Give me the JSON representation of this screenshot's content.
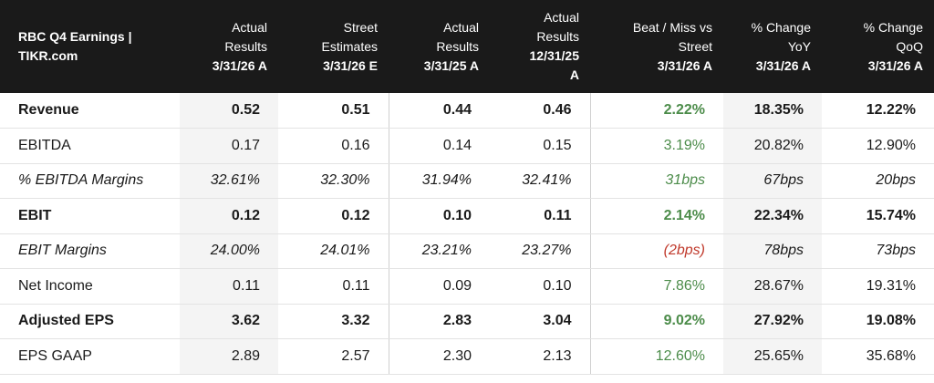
{
  "header": {
    "title_line1": "RBC Q4 Earnings |",
    "title_line2": "TIKR.com",
    "columns": [
      {
        "line1": "Actual",
        "line2": "Results",
        "line3": "3/31/26 A"
      },
      {
        "line1": "Street",
        "line2": "Estimates",
        "line3": "3/31/26 E"
      },
      {
        "line1": "Actual",
        "line2": "Results",
        "line3": "3/31/25 A"
      },
      {
        "line1": "Actual",
        "line2": "Results",
        "line3": "12/31/25",
        "line4": "A"
      },
      {
        "line1": "Beat / Miss vs",
        "line2": "Street",
        "line3": "3/31/26 A"
      },
      {
        "line1": "% Change",
        "line2": "YoY",
        "line3": "3/31/26 A"
      },
      {
        "line1": "% Change",
        "line2": "QoQ",
        "line3": "3/31/26 A"
      }
    ]
  },
  "rows": [
    {
      "label": "Revenue",
      "cells": [
        "0.52",
        "0.51",
        "0.44",
        "0.46",
        "2.22%",
        "18.35%",
        "12.22%"
      ]
    },
    {
      "label": "EBITDA",
      "cells": [
        "0.17",
        "0.16",
        "0.14",
        "0.15",
        "3.19%",
        "20.82%",
        "12.90%"
      ]
    },
    {
      "label": "% EBITDA Margins",
      "cells": [
        "32.61%",
        "32.30%",
        "31.94%",
        "32.41%",
        "31bps",
        "67bps",
        "20bps"
      ]
    },
    {
      "label": "EBIT",
      "cells": [
        "0.12",
        "0.12",
        "0.10",
        "0.11",
        "2.14%",
        "22.34%",
        "15.74%"
      ]
    },
    {
      "label": "EBIT Margins",
      "cells": [
        "24.00%",
        "24.01%",
        "23.21%",
        "23.27%",
        "(2bps)",
        "78bps",
        "73bps"
      ]
    },
    {
      "label": "Net Income",
      "cells": [
        "0.11",
        "0.11",
        "0.09",
        "0.10",
        "7.86%",
        "28.67%",
        "19.31%"
      ]
    },
    {
      "label": "Adjusted EPS",
      "cells": [
        "3.62",
        "3.32",
        "2.83",
        "3.04",
        "9.02%",
        "27.92%",
        "19.08%"
      ]
    },
    {
      "label": "EPS GAAP",
      "cells": [
        "2.89",
        "2.57",
        "2.30",
        "2.13",
        "12.60%",
        "25.65%",
        "35.68%"
      ]
    }
  ],
  "colors": {
    "beat": "#4c8c4a",
    "miss": "#c0392b",
    "header_bg": "#1a1a1a"
  }
}
